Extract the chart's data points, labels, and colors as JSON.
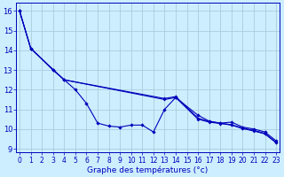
{
  "xlabel": "Graphe des températures (°c)",
  "bg_color": "#cceeff",
  "grid_color": "#aaccdd",
  "line_color": "#0000bb",
  "x_ticks": [
    0,
    1,
    2,
    3,
    4,
    5,
    6,
    7,
    8,
    9,
    10,
    11,
    12,
    13,
    14,
    15,
    16,
    17,
    18,
    19,
    20,
    21,
    22,
    23
  ],
  "y_ticks": [
    9,
    10,
    11,
    12,
    13,
    14,
    15,
    16
  ],
  "ylim": [
    8.8,
    16.4
  ],
  "xlim": [
    -0.3,
    23.3
  ],
  "series1_x": [
    0,
    1,
    3,
    4,
    5,
    6,
    7,
    8,
    9,
    10,
    11,
    12,
    13,
    14,
    16,
    17,
    18,
    19,
    20,
    21,
    22,
    23
  ],
  "series1_y": [
    16.0,
    14.1,
    13.0,
    12.5,
    12.0,
    11.3,
    10.3,
    10.15,
    10.1,
    10.2,
    10.2,
    9.85,
    11.0,
    11.6,
    10.7,
    10.4,
    10.3,
    10.35,
    10.1,
    10.0,
    9.85,
    9.4
  ],
  "series2_x": [
    0,
    1,
    3,
    4,
    13,
    14,
    16,
    17,
    18,
    19,
    20,
    21,
    22,
    23
  ],
  "series2_y": [
    16.0,
    14.1,
    13.0,
    12.5,
    11.55,
    11.65,
    10.55,
    10.38,
    10.3,
    10.22,
    10.05,
    9.93,
    9.78,
    9.32
  ],
  "series3_x": [
    0,
    1,
    4,
    13,
    14,
    16,
    17,
    18,
    19,
    20,
    21,
    22,
    23
  ],
  "series3_y": [
    16.0,
    14.1,
    12.5,
    11.5,
    11.6,
    10.5,
    10.35,
    10.28,
    10.2,
    10.02,
    9.9,
    9.75,
    9.3
  ],
  "xlabel_fontsize": 6.5,
  "tick_fontsize": 5.5,
  "ytick_fontsize": 6.0
}
